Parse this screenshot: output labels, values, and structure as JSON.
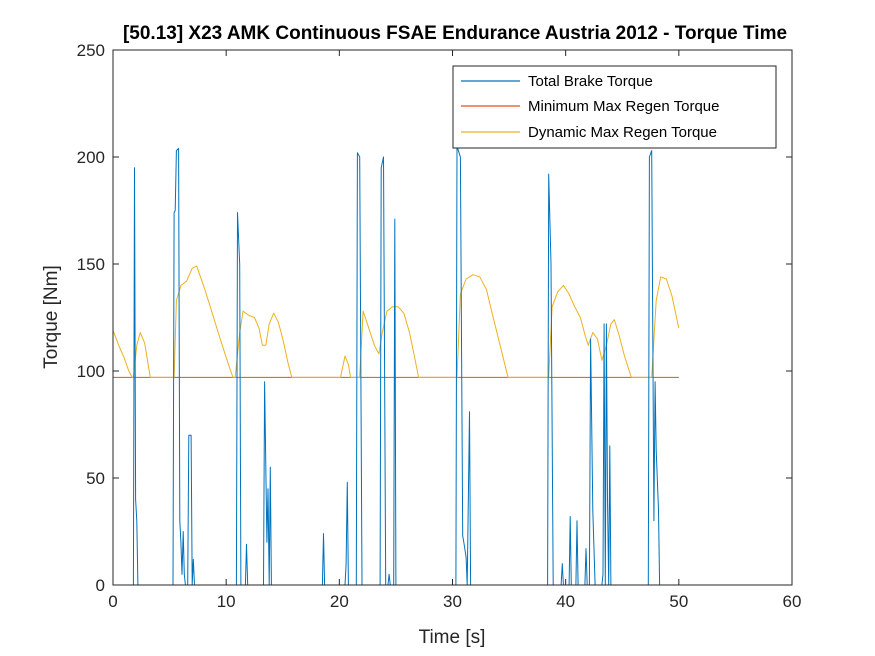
{
  "chart_data": {
    "type": "line",
    "title": "[50.13] X23 AMK Continuous  FSAE Endurance Austria 2012 - Torque Time",
    "xlabel": "Time [s]",
    "ylabel": "Torque [Nm]",
    "xlim": [
      0,
      60
    ],
    "ylim": [
      0,
      250
    ],
    "xticks": [
      0,
      10,
      20,
      30,
      40,
      50,
      60
    ],
    "yticks": [
      0,
      50,
      100,
      150,
      200,
      250
    ],
    "grid": false,
    "legend_position": "top-right",
    "series": [
      {
        "name": "Total Brake Torque",
        "color": "#0072BD",
        "points": [
          [
            0,
            0
          ],
          [
            1.8,
            0
          ],
          [
            1.9,
            195
          ],
          [
            2.0,
            40
          ],
          [
            2.1,
            30
          ],
          [
            2.2,
            0
          ],
          [
            5.3,
            0
          ],
          [
            5.4,
            174
          ],
          [
            5.5,
            175
          ],
          [
            5.6,
            203
          ],
          [
            5.8,
            204
          ],
          [
            5.9,
            30
          ],
          [
            6.0,
            20
          ],
          [
            6.1,
            5
          ],
          [
            6.2,
            25
          ],
          [
            6.3,
            5
          ],
          [
            6.4,
            0
          ],
          [
            6.6,
            0
          ],
          [
            6.7,
            70
          ],
          [
            6.9,
            70
          ],
          [
            7.0,
            0
          ],
          [
            7.1,
            12
          ],
          [
            7.2,
            0
          ],
          [
            10.9,
            0
          ],
          [
            11.0,
            174
          ],
          [
            11.2,
            150
          ],
          [
            11.3,
            0
          ],
          [
            11.7,
            0
          ],
          [
            11.8,
            19
          ],
          [
            11.9,
            0
          ],
          [
            13.3,
            0
          ],
          [
            13.4,
            95
          ],
          [
            13.6,
            20
          ],
          [
            13.7,
            45
          ],
          [
            13.8,
            0
          ],
          [
            13.9,
            55
          ],
          [
            14.0,
            0
          ],
          [
            18.5,
            0
          ],
          [
            18.6,
            24
          ],
          [
            18.7,
            0
          ],
          [
            20.5,
            0
          ],
          [
            20.6,
            10
          ],
          [
            20.7,
            48
          ],
          [
            20.8,
            0
          ],
          [
            21.5,
            0
          ],
          [
            21.6,
            202
          ],
          [
            21.8,
            200
          ],
          [
            22.0,
            0
          ],
          [
            23.6,
            0
          ],
          [
            23.7,
            195
          ],
          [
            23.9,
            200
          ],
          [
            24.1,
            0
          ],
          [
            24.3,
            0
          ],
          [
            24.4,
            5
          ],
          [
            24.5,
            0
          ],
          [
            24.8,
            0
          ],
          [
            24.9,
            171
          ],
          [
            25.0,
            0
          ],
          [
            30.3,
            0
          ],
          [
            30.4,
            205
          ],
          [
            30.7,
            200
          ],
          [
            30.9,
            23
          ],
          [
            31.0,
            20
          ],
          [
            31.2,
            13
          ],
          [
            31.3,
            0
          ],
          [
            31.5,
            81
          ],
          [
            31.6,
            0
          ],
          [
            38.4,
            0
          ],
          [
            38.5,
            192
          ],
          [
            38.7,
            150
          ],
          [
            38.9,
            0
          ],
          [
            39.6,
            0
          ],
          [
            39.7,
            10
          ],
          [
            39.8,
            0
          ],
          [
            40.3,
            0
          ],
          [
            40.4,
            32
          ],
          [
            40.5,
            0
          ],
          [
            40.9,
            0
          ],
          [
            41.0,
            30
          ],
          [
            41.1,
            0
          ],
          [
            41.7,
            0
          ],
          [
            41.8,
            17
          ],
          [
            41.9,
            0
          ],
          [
            42.1,
            0
          ],
          [
            42.2,
            115
          ],
          [
            42.4,
            35
          ],
          [
            42.6,
            0
          ],
          [
            43.2,
            0
          ],
          [
            43.3,
            5
          ],
          [
            43.4,
            122
          ],
          [
            43.5,
            0
          ],
          [
            43.6,
            122
          ],
          [
            43.7,
            40
          ],
          [
            43.8,
            0
          ],
          [
            43.9,
            65
          ],
          [
            44.0,
            0
          ],
          [
            47.3,
            0
          ],
          [
            47.4,
            200
          ],
          [
            47.6,
            203
          ],
          [
            47.8,
            30
          ],
          [
            47.9,
            95
          ],
          [
            48.0,
            63
          ],
          [
            48.2,
            35
          ],
          [
            48.3,
            0
          ],
          [
            48.5,
            0
          ]
        ]
      },
      {
        "name": "Minimum Max Regen Torque",
        "color": "#D95319",
        "points": [
          [
            0,
            97
          ],
          [
            50,
            97
          ]
        ]
      },
      {
        "name": "Dynamic Max Regen Torque",
        "color": "#EDB120",
        "points": [
          [
            0,
            119
          ],
          [
            0.5,
            112
          ],
          [
            1.0,
            106
          ],
          [
            1.4,
            100
          ],
          [
            1.7,
            97
          ],
          [
            1.8,
            97
          ],
          [
            2.1,
            112
          ],
          [
            2.4,
            118
          ],
          [
            2.8,
            113
          ],
          [
            3.2,
            100
          ],
          [
            3.3,
            97
          ],
          [
            5.4,
            97
          ],
          [
            5.6,
            133
          ],
          [
            6.0,
            140
          ],
          [
            6.5,
            142
          ],
          [
            7.0,
            148
          ],
          [
            7.4,
            149
          ],
          [
            8.0,
            140
          ],
          [
            8.6,
            130
          ],
          [
            9.3,
            118
          ],
          [
            9.9,
            108
          ],
          [
            10.4,
            100
          ],
          [
            10.6,
            97
          ],
          [
            10.8,
            97
          ],
          [
            11.2,
            118
          ],
          [
            11.5,
            128
          ],
          [
            12.0,
            126
          ],
          [
            12.5,
            125
          ],
          [
            12.9,
            120
          ],
          [
            13.2,
            112
          ],
          [
            13.5,
            112
          ],
          [
            13.8,
            122
          ],
          [
            14.2,
            127
          ],
          [
            14.6,
            123
          ],
          [
            15.0,
            115
          ],
          [
            15.5,
            103
          ],
          [
            15.8,
            97
          ],
          [
            20.1,
            97
          ],
          [
            20.5,
            107
          ],
          [
            20.8,
            103
          ],
          [
            21.0,
            97
          ],
          [
            21.8,
            97
          ],
          [
            22.1,
            128
          ],
          [
            22.6,
            120
          ],
          [
            23.1,
            112
          ],
          [
            23.5,
            108
          ],
          [
            23.8,
            118
          ],
          [
            24.2,
            128
          ],
          [
            24.7,
            130
          ],
          [
            25.2,
            130
          ],
          [
            25.7,
            127
          ],
          [
            26.2,
            118
          ],
          [
            26.7,
            105
          ],
          [
            27.0,
            97
          ],
          [
            30.4,
            97
          ],
          [
            30.7,
            136
          ],
          [
            31.2,
            143
          ],
          [
            31.8,
            145
          ],
          [
            32.4,
            144
          ],
          [
            33.0,
            138
          ],
          [
            33.6,
            125
          ],
          [
            34.3,
            110
          ],
          [
            34.9,
            97
          ],
          [
            38.5,
            97
          ],
          [
            38.8,
            130
          ],
          [
            39.3,
            137
          ],
          [
            39.8,
            140
          ],
          [
            40.3,
            136
          ],
          [
            40.8,
            130
          ],
          [
            41.3,
            125
          ],
          [
            41.7,
            117
          ],
          [
            42.0,
            112
          ],
          [
            42.4,
            118
          ],
          [
            42.8,
            115
          ],
          [
            43.2,
            105
          ],
          [
            43.6,
            112
          ],
          [
            44.0,
            122
          ],
          [
            44.3,
            124
          ],
          [
            44.7,
            117
          ],
          [
            45.2,
            107
          ],
          [
            45.8,
            97
          ],
          [
            47.6,
            97
          ],
          [
            48.0,
            133
          ],
          [
            48.4,
            144
          ],
          [
            48.9,
            143
          ],
          [
            49.4,
            135
          ],
          [
            50.0,
            120
          ]
        ]
      }
    ]
  }
}
